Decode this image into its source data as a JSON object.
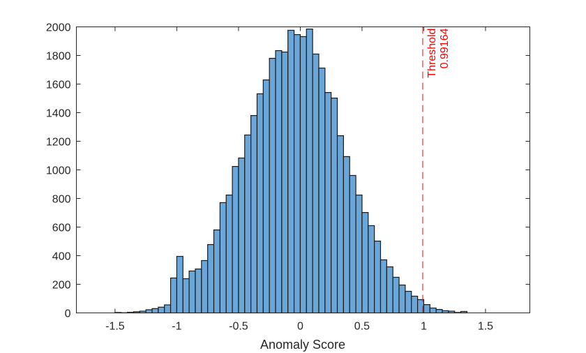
{
  "chart_data": {
    "type": "bar",
    "subtype": "histogram",
    "title": "",
    "xlabel": "Anomaly Score",
    "ylabel": "",
    "xlim": [
      -1.813,
      1.859
    ],
    "ylim": [
      0,
      2000
    ],
    "grid": false,
    "legend": null,
    "bin_width": 0.05,
    "bin_edges_start": -1.5,
    "x_ticks": [
      -1.5,
      -1,
      -0.5,
      0,
      0.5,
      1,
      1.5
    ],
    "x_tick_labels": [
      "-1.5",
      "-1",
      "-0.5",
      "0",
      "0.5",
      "1",
      "1.5"
    ],
    "y_ticks": [
      0,
      200,
      400,
      600,
      800,
      1000,
      1200,
      1400,
      1600,
      1800,
      2000
    ],
    "y_tick_labels": [
      "0",
      "200",
      "400",
      "600",
      "800",
      "1000",
      "1200",
      "1400",
      "1600",
      "1800",
      "2000"
    ],
    "bins": [
      {
        "left": -1.5,
        "count": 3
      },
      {
        "left": -1.45,
        "count": 1
      },
      {
        "left": -1.4,
        "count": 4
      },
      {
        "left": -1.35,
        "count": 8
      },
      {
        "left": -1.3,
        "count": 12
      },
      {
        "left": -1.25,
        "count": 22
      },
      {
        "left": -1.2,
        "count": 30
      },
      {
        "left": -1.15,
        "count": 40
      },
      {
        "left": -1.1,
        "count": 56
      },
      {
        "left": -1.05,
        "count": 244
      },
      {
        "left": -1.0,
        "count": 395
      },
      {
        "left": -0.95,
        "count": 239
      },
      {
        "left": -0.9,
        "count": 293
      },
      {
        "left": -0.85,
        "count": 307
      },
      {
        "left": -0.8,
        "count": 366
      },
      {
        "left": -0.75,
        "count": 478
      },
      {
        "left": -0.7,
        "count": 580
      },
      {
        "left": -0.65,
        "count": 771
      },
      {
        "left": -0.6,
        "count": 824
      },
      {
        "left": -0.55,
        "count": 1024
      },
      {
        "left": -0.5,
        "count": 1083
      },
      {
        "left": -0.45,
        "count": 1244
      },
      {
        "left": -0.4,
        "count": 1380
      },
      {
        "left": -0.35,
        "count": 1532
      },
      {
        "left": -0.3,
        "count": 1629
      },
      {
        "left": -0.25,
        "count": 1780
      },
      {
        "left": -0.2,
        "count": 1834
      },
      {
        "left": -0.15,
        "count": 1824
      },
      {
        "left": -0.1,
        "count": 1976
      },
      {
        "left": -0.05,
        "count": 1946
      },
      {
        "left": 0.0,
        "count": 1932
      },
      {
        "left": 0.05,
        "count": 1985
      },
      {
        "left": 0.1,
        "count": 1810
      },
      {
        "left": 0.15,
        "count": 1712
      },
      {
        "left": 0.2,
        "count": 1541
      },
      {
        "left": 0.25,
        "count": 1502
      },
      {
        "left": 0.3,
        "count": 1239
      },
      {
        "left": 0.35,
        "count": 1093
      },
      {
        "left": 0.4,
        "count": 961
      },
      {
        "left": 0.45,
        "count": 824
      },
      {
        "left": 0.5,
        "count": 702
      },
      {
        "left": 0.55,
        "count": 610
      },
      {
        "left": 0.6,
        "count": 502
      },
      {
        "left": 0.65,
        "count": 371
      },
      {
        "left": 0.7,
        "count": 322
      },
      {
        "left": 0.75,
        "count": 249
      },
      {
        "left": 0.8,
        "count": 195
      },
      {
        "left": 0.85,
        "count": 151
      },
      {
        "left": 0.9,
        "count": 117
      },
      {
        "left": 0.95,
        "count": 93
      },
      {
        "left": 1.0,
        "count": 58
      },
      {
        "left": 1.05,
        "count": 34
      },
      {
        "left": 1.1,
        "count": 24
      },
      {
        "left": 1.15,
        "count": 15
      },
      {
        "left": 1.2,
        "count": 12
      },
      {
        "left": 1.25,
        "count": 3
      },
      {
        "left": 1.3,
        "count": 10
      }
    ],
    "annotations": [
      {
        "type": "vline",
        "x": 0.99164,
        "style": "dashed",
        "color": "#ff0000",
        "label_lines": [
          "Threshold",
          "0.99164"
        ]
      }
    ]
  },
  "colors": {
    "bar_fill": "#6aa6d8",
    "bar_edge": "#1a1a1a",
    "axis": "#262626",
    "threshold": "#ff0000"
  },
  "threshold": {
    "label": "Threshold",
    "value_label": "0.99164"
  }
}
